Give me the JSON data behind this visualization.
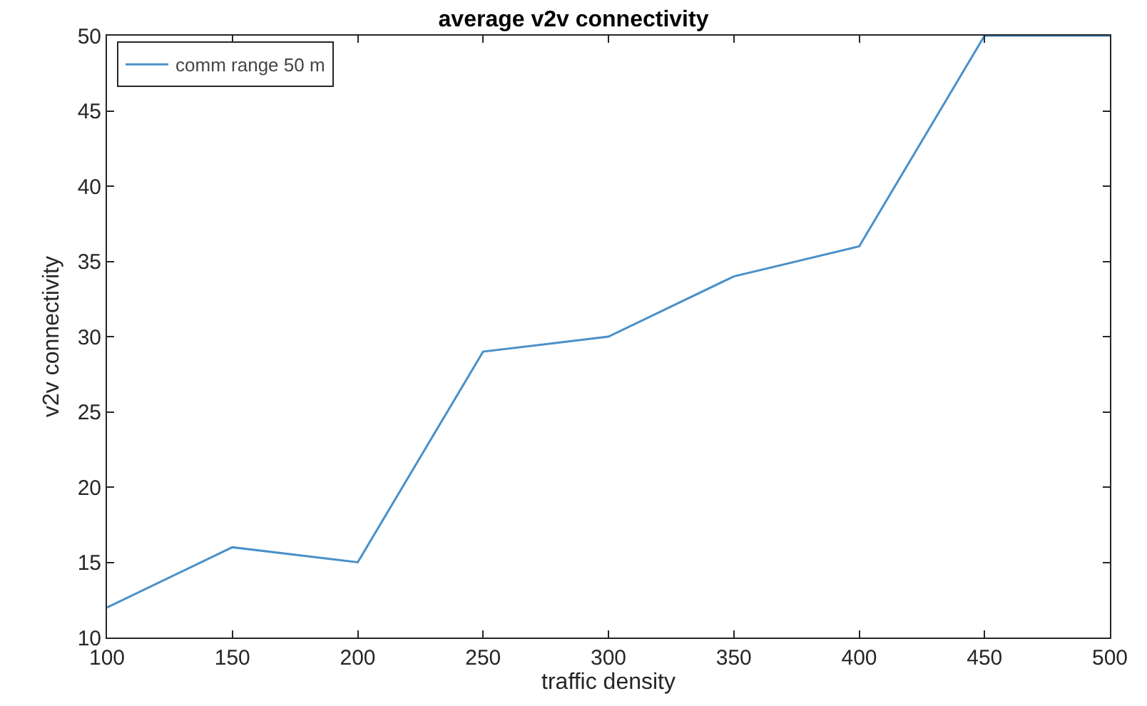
{
  "chart_data": {
    "type": "line",
    "title": "average v2v connectivity",
    "xlabel": "traffic density",
    "ylabel": "v2v connectivity",
    "x": [
      100,
      150,
      200,
      250,
      300,
      350,
      400,
      450,
      500
    ],
    "series": [
      {
        "name": "comm range 50 m",
        "color": "#4a90c8",
        "values": [
          12,
          16,
          15,
          29,
          30,
          34,
          36,
          50,
          50
        ]
      }
    ],
    "xlim": [
      100,
      500
    ],
    "xticks": [
      100,
      150,
      200,
      250,
      300,
      350,
      400,
      450,
      500
    ],
    "ylim": [
      10,
      50
    ],
    "yticks": [
      10,
      15,
      20,
      25,
      30,
      35,
      40,
      45,
      50
    ],
    "grid": false,
    "legend": "top left",
    "marker": "none",
    "line_style": "solid"
  }
}
